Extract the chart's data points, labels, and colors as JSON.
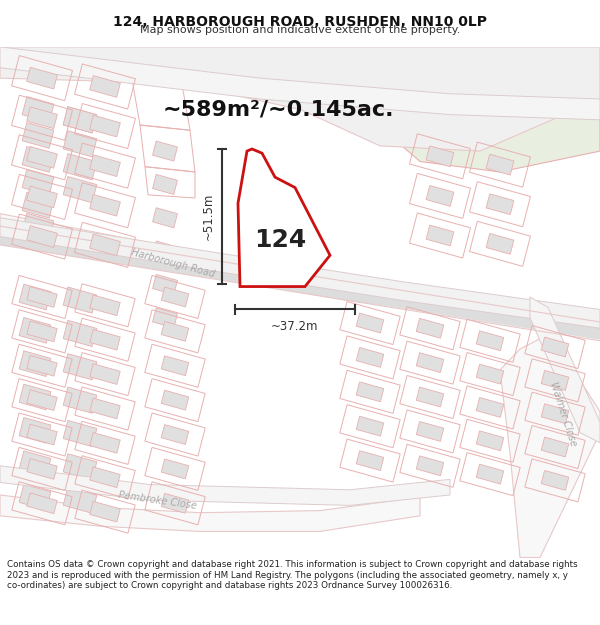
{
  "title": "124, HARBOROUGH ROAD, RUSHDEN, NN10 0LP",
  "subtitle": "Map shows position and indicative extent of the property.",
  "area_text": "~589m²/~0.145ac.",
  "dim_horizontal": "~37.2m",
  "dim_vertical": "~51.5m",
  "label": "124",
  "footer": "Contains OS data © Crown copyright and database right 2021. This information is subject to Crown copyright and database rights 2023 and is reproduced with the permission of HM Land Registry. The polygons (including the associated geometry, namely x, y co-ordinates) are subject to Crown copyright and database rights 2023 Ordnance Survey 100026316.",
  "bg_color": "#ffffff",
  "map_bg": "#f7f5f2",
  "green_area": "#e8efe0",
  "road_fill": "#f5f5f5",
  "road_outline": "#e8c8c8",
  "parcel_outline": "#e8b0b0",
  "building_fill": "#e0e0e0",
  "building_outline": "#c8c8c8",
  "highlight_outline": "#cc1111",
  "highlight_fill": "#ffffff",
  "dim_color": "#333333",
  "label_color": "#222222",
  "road_text_color": "#aaaaaa",
  "area_text_color": "#111111"
}
